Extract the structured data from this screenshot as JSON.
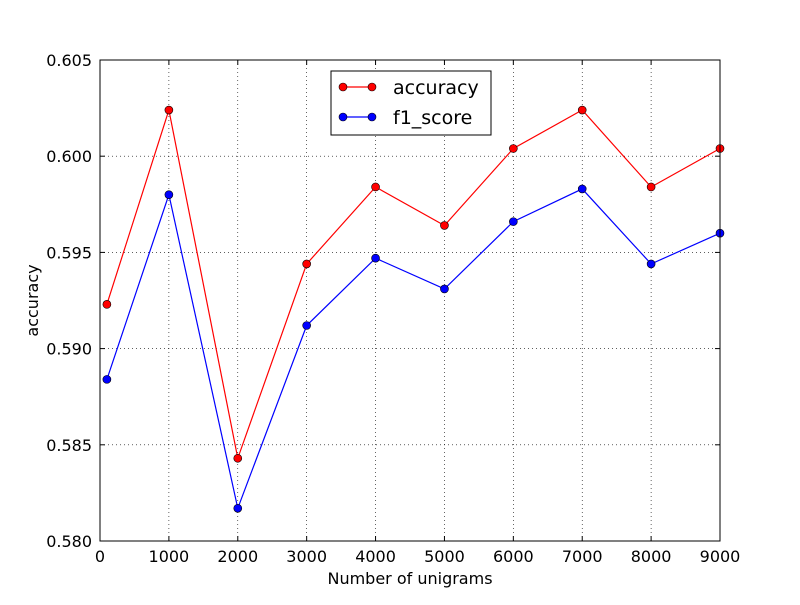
{
  "chart_data": {
    "type": "line",
    "title": "",
    "xlabel": "Number of unigrams",
    "ylabel": "accuracy",
    "xlim": [
      0,
      9000
    ],
    "ylim": [
      0.58,
      0.605
    ],
    "xticks": [
      0,
      1000,
      2000,
      3000,
      4000,
      5000,
      6000,
      7000,
      8000,
      9000
    ],
    "xtick_labels": [
      "0",
      "1000",
      "2000",
      "3000",
      "4000",
      "5000",
      "6000",
      "7000",
      "8000",
      "9000"
    ],
    "yticks": [
      0.58,
      0.585,
      0.59,
      0.595,
      0.6,
      0.605
    ],
    "ytick_labels": [
      "0.580",
      "0.585",
      "0.590",
      "0.595",
      "0.600",
      "0.605"
    ],
    "grid": true,
    "legend_position": "top-center",
    "x": [
      100,
      1000,
      2000,
      3000,
      4000,
      5000,
      6000,
      7000,
      8000,
      9000
    ],
    "series": [
      {
        "name": "accuracy",
        "color": "#ff0000",
        "marker_color": "#ff0000",
        "values": [
          0.5923,
          0.6024,
          0.5843,
          0.5944,
          0.5984,
          0.5964,
          0.6004,
          0.6024,
          0.5984,
          0.6004
        ]
      },
      {
        "name": "f1_score",
        "color": "#0000ff",
        "marker_color": "#0000ff",
        "values": [
          0.5884,
          0.598,
          0.5817,
          0.5912,
          0.5947,
          0.5931,
          0.5966,
          0.5983,
          0.5944,
          0.596
        ]
      }
    ]
  }
}
